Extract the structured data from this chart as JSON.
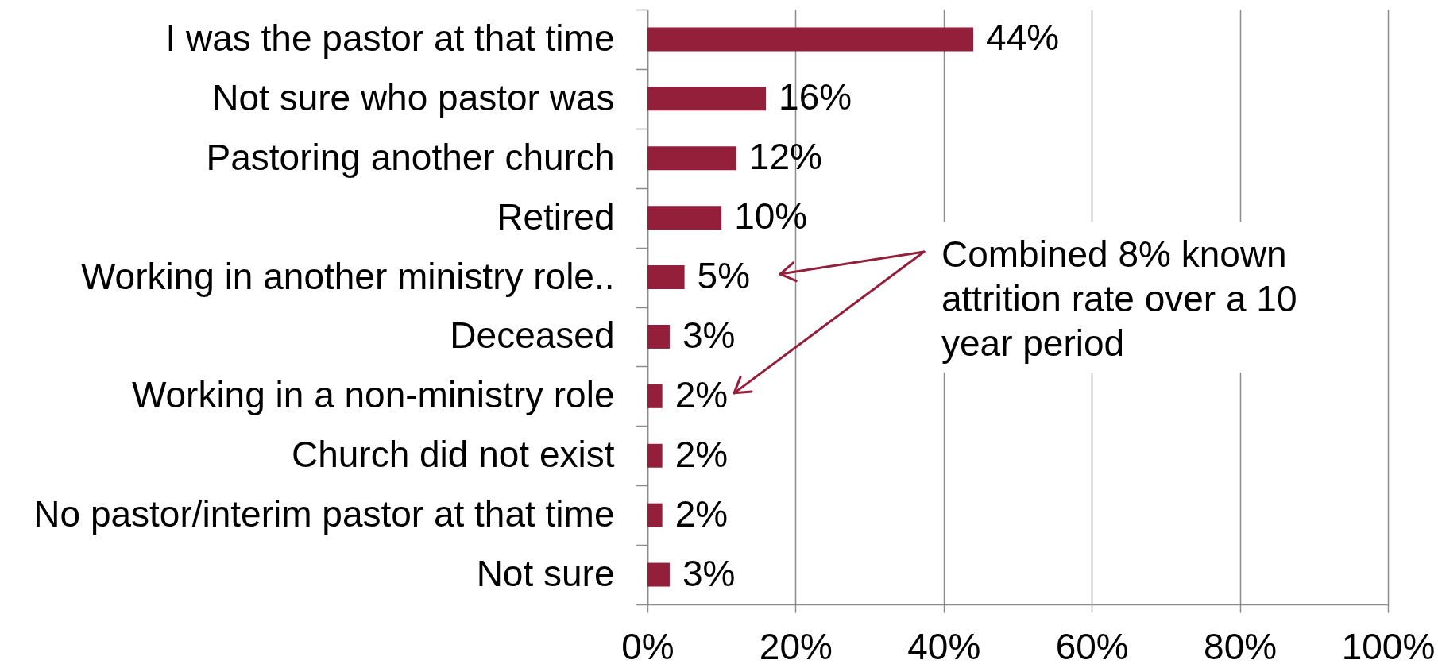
{
  "chart_data": {
    "type": "bar",
    "orientation": "horizontal",
    "categories": [
      "I was the pastor at that time",
      "Not sure who pastor was",
      "Pastoring another church",
      "Retired",
      "Working in another ministry role..",
      "Deceased",
      "Working in a non-ministry role",
      "Church did not exist",
      "No pastor/interim pastor at that time",
      "Not sure"
    ],
    "values": [
      44,
      16,
      12,
      10,
      5,
      3,
      2,
      2,
      2,
      3
    ],
    "value_labels": [
      "44%",
      "16%",
      "12%",
      "10%",
      "5%",
      "3%",
      "2%",
      "2%",
      "2%",
      "3%"
    ],
    "color": "#941f3a",
    "xlim": [
      0,
      100
    ],
    "xticks": [
      {
        "value": 0,
        "label": "0%"
      },
      {
        "value": 20,
        "label": "20%"
      },
      {
        "value": 40,
        "label": "40%"
      },
      {
        "value": 60,
        "label": "60%"
      },
      {
        "value": 80,
        "label": "80%"
      },
      {
        "value": 100,
        "label": "100%"
      }
    ],
    "grid": "x",
    "annotations": [
      "Combined 8% known attrition rate over a 10 year period"
    ]
  }
}
